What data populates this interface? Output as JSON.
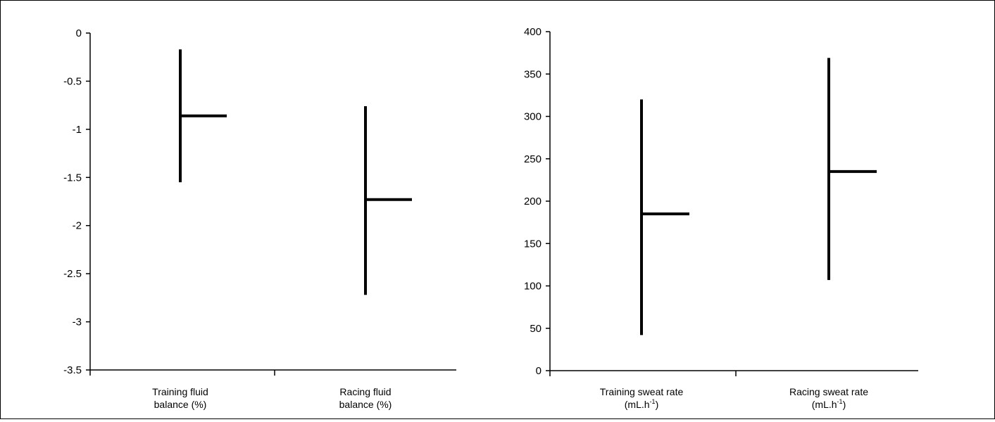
{
  "chart_data": [
    {
      "type": "range",
      "categories": [
        {
          "lines": [
            "Training fluid",
            "balance (%)"
          ]
        },
        {
          "lines": [
            "Racing fluid",
            "balance (%)"
          ]
        }
      ],
      "series": [
        {
          "low": -1.55,
          "high": -0.17,
          "mean": -0.86
        },
        {
          "low": -2.72,
          "high": -0.76,
          "mean": -1.73
        }
      ],
      "ylim": [
        -3.5,
        0
      ],
      "yticks": [
        0,
        -0.5,
        -1,
        -1.5,
        -2,
        -2.5,
        -3,
        -3.5
      ],
      "grid": false
    },
    {
      "type": "range",
      "categories": [
        {
          "lines": [
            "Training sweat rate",
            "(mL.h",
            "-1",
            ")"
          ]
        },
        {
          "lines": [
            "Racing sweat rate",
            "(mL.h",
            "-1",
            ")"
          ]
        }
      ],
      "series": [
        {
          "low": 42,
          "high": 320,
          "mean": 185
        },
        {
          "low": 107,
          "high": 369,
          "mean": 235
        }
      ],
      "ylim": [
        0,
        400
      ],
      "yticks": [
        400,
        350,
        300,
        250,
        200,
        150,
        100,
        50,
        0
      ],
      "grid": false
    }
  ]
}
